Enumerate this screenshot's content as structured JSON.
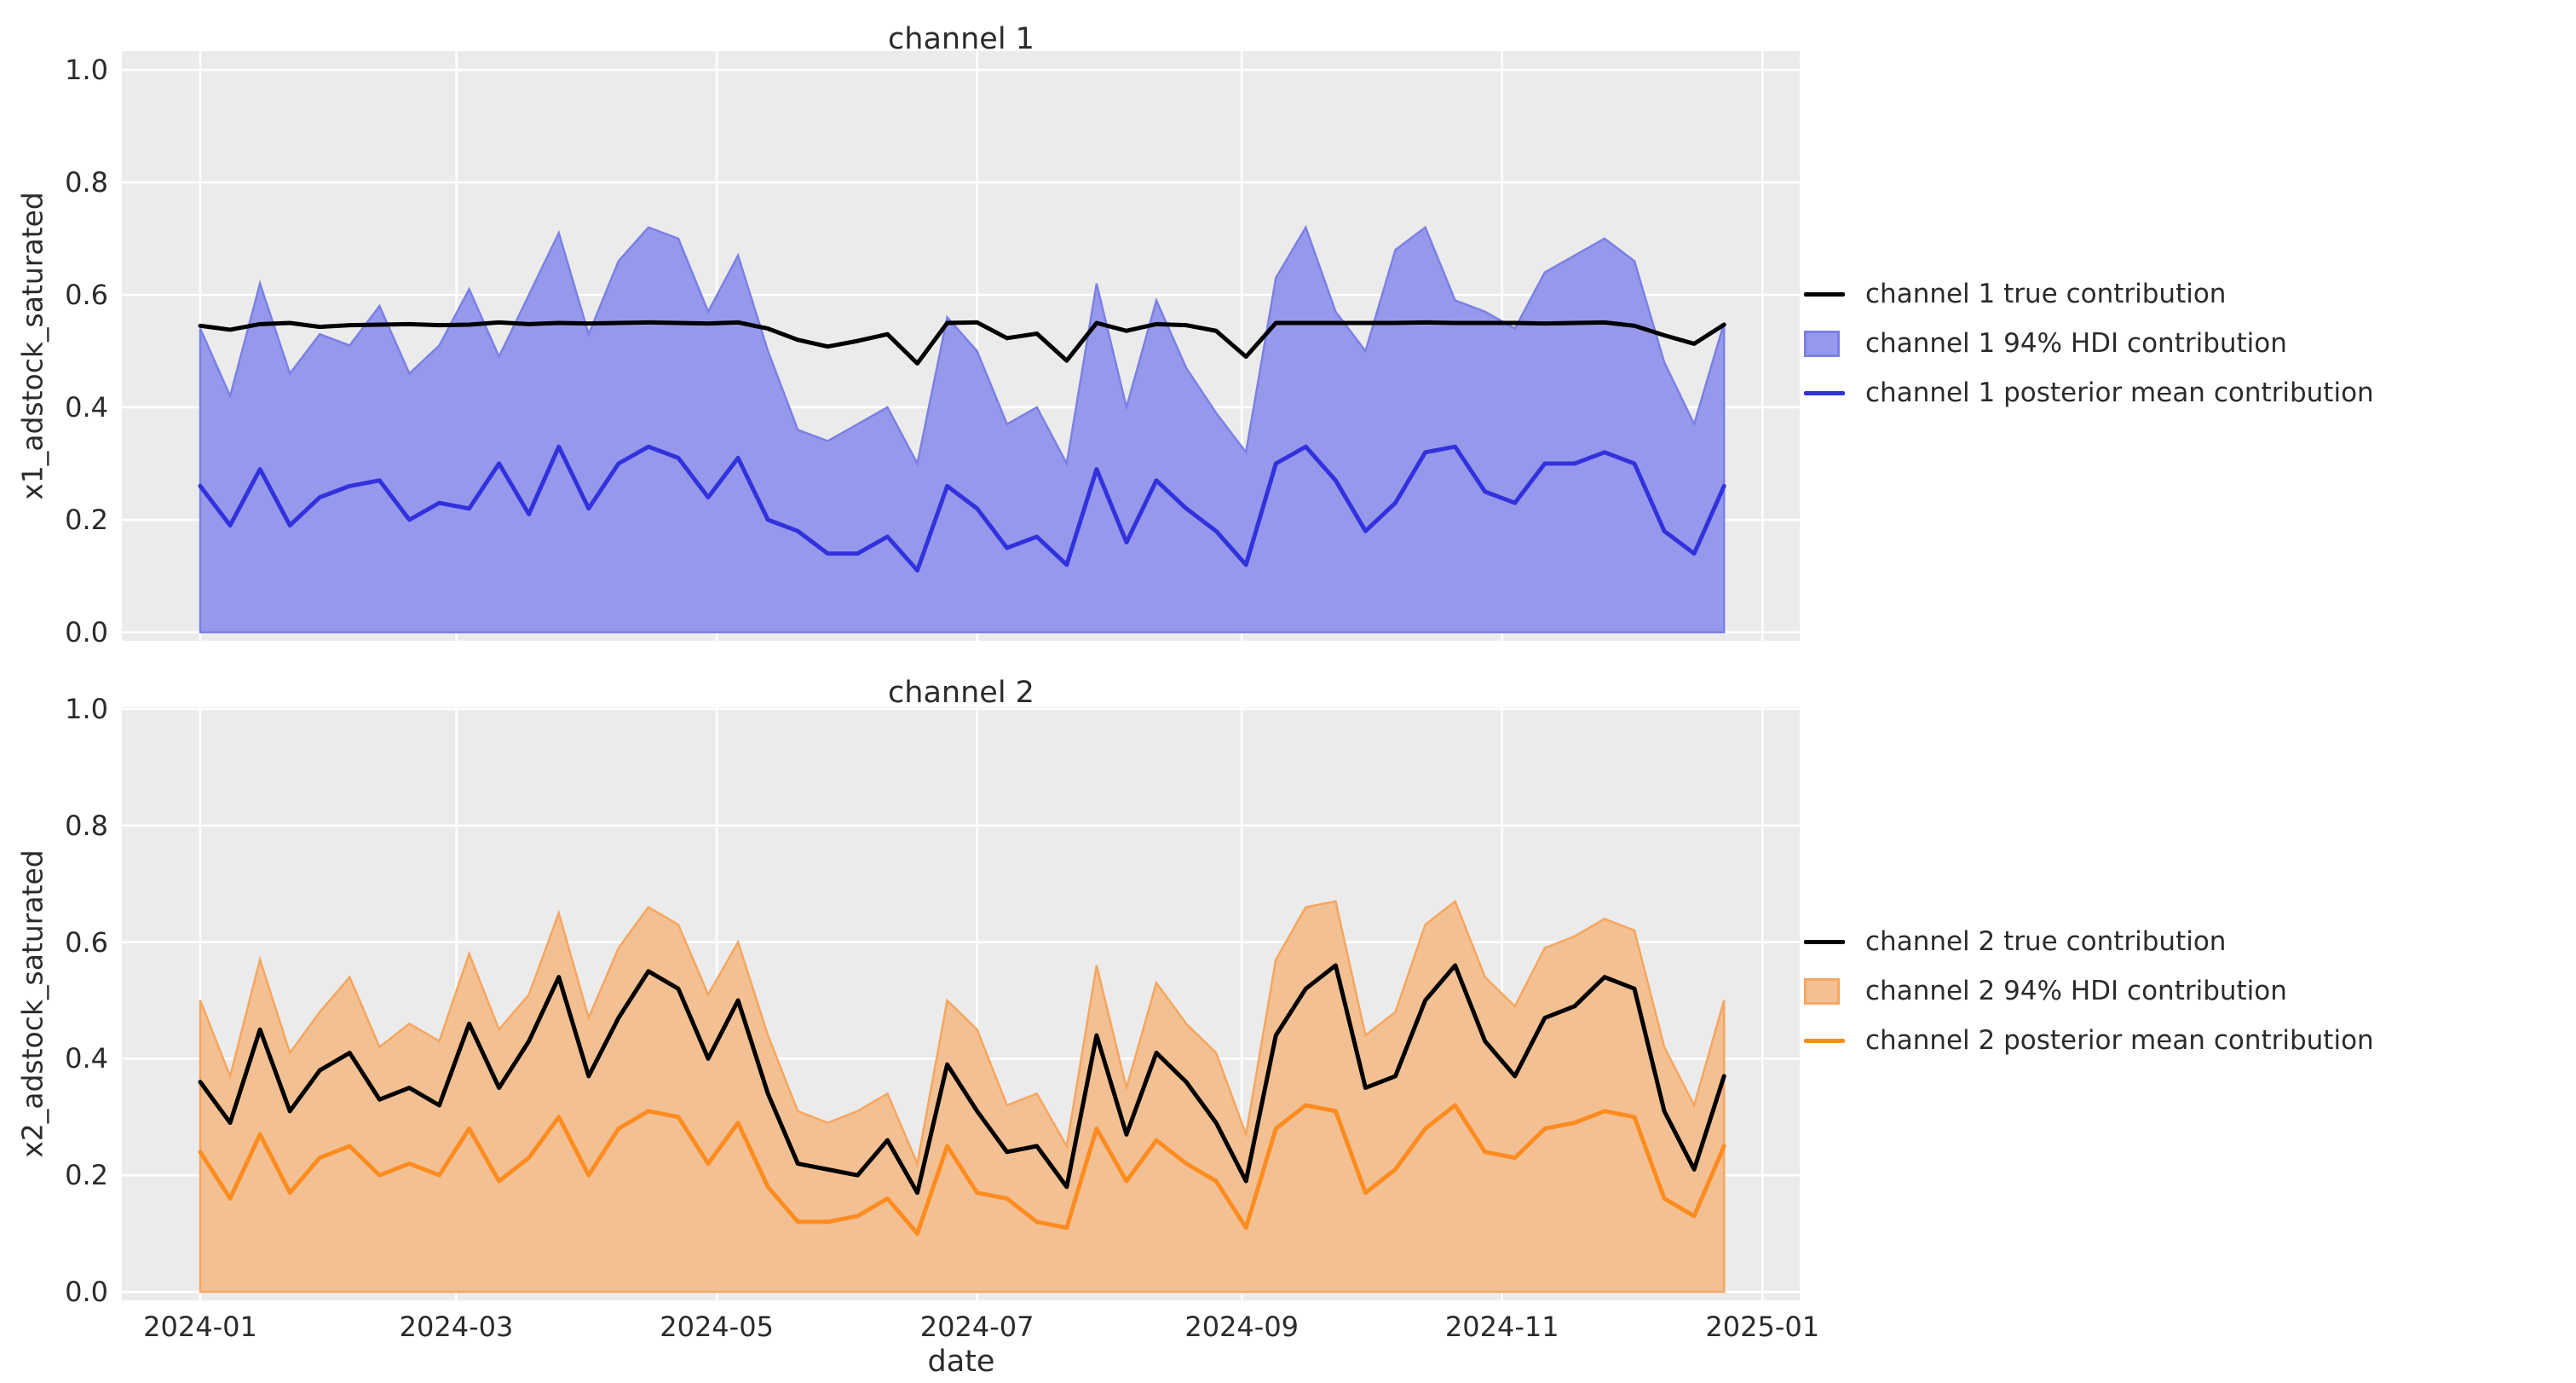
{
  "figure": {
    "background": "#ffffff",
    "axes_background": "#ebebeb",
    "grid_color": "#ffffff",
    "text_color": "#2b2b2b"
  },
  "xlabel": "date",
  "charts": [
    {
      "title": "channel 1",
      "ylabel": "x1_adstock_saturated",
      "legend": [
        {
          "swatch": "line",
          "color": "#000000",
          "label": "channel 1 true contribution"
        },
        {
          "swatch": "patch",
          "fill": "#9699eb",
          "edge": "#7b80e4",
          "label": "channel 1 94% HDI contribution"
        },
        {
          "swatch": "line",
          "color": "#3232dc",
          "label": "channel 1 posterior mean contribution"
        }
      ]
    },
    {
      "title": "channel 2",
      "ylabel": "x2_adstock_saturated",
      "legend": [
        {
          "swatch": "line",
          "color": "#000000",
          "label": "channel 2 true contribution"
        },
        {
          "swatch": "patch",
          "fill": "#f3c093",
          "edge": "#f5a65f",
          "label": "channel 2 94% HDI contribution"
        },
        {
          "swatch": "line",
          "color": "#fd8c20",
          "label": "channel 2 posterior mean contribution"
        }
      ]
    }
  ],
  "chart_data": [
    {
      "type": "line",
      "title": "channel 1",
      "xlabel": "date",
      "ylabel": "x1_adstock_saturated",
      "ylim": [
        0.0,
        1.0
      ],
      "grid": true,
      "legend_position": "right-outside",
      "y_ticks": [
        0.0,
        0.2,
        0.4,
        0.6,
        0.8,
        1.0
      ],
      "x_tick_labels": [
        "2024-01",
        "2024-03",
        "2024-05",
        "2024-07",
        "2024-09",
        "2024-11",
        "2025-01"
      ],
      "x_tick_days": [
        0,
        60,
        121,
        182,
        244,
        305,
        366
      ],
      "x_tick_labels_visible": false,
      "x": [
        "2024-01-01",
        "2024-01-08",
        "2024-01-15",
        "2024-01-22",
        "2024-01-29",
        "2024-02-05",
        "2024-02-12",
        "2024-02-19",
        "2024-02-26",
        "2024-03-04",
        "2024-03-11",
        "2024-03-18",
        "2024-03-25",
        "2024-04-01",
        "2024-04-08",
        "2024-04-15",
        "2024-04-22",
        "2024-04-29",
        "2024-05-06",
        "2024-05-13",
        "2024-05-20",
        "2024-05-27",
        "2024-06-03",
        "2024-06-10",
        "2024-06-17",
        "2024-06-24",
        "2024-07-01",
        "2024-07-08",
        "2024-07-15",
        "2024-07-22",
        "2024-07-29",
        "2024-08-05",
        "2024-08-12",
        "2024-08-19",
        "2024-08-26",
        "2024-09-02",
        "2024-09-09",
        "2024-09-16",
        "2024-09-23",
        "2024-09-30",
        "2024-10-07",
        "2024-10-14",
        "2024-10-21",
        "2024-10-28",
        "2024-11-04",
        "2024-11-11",
        "2024-11-18",
        "2024-11-25",
        "2024-12-02",
        "2024-12-09",
        "2024-12-16",
        "2024-12-23"
      ],
      "series": [
        {
          "name": "channel 1 true contribution",
          "type": "line",
          "color": "#000000",
          "values": [
            0.545,
            0.538,
            0.548,
            0.55,
            0.543,
            0.546,
            0.547,
            0.548,
            0.546,
            0.547,
            0.551,
            0.548,
            0.55,
            0.549,
            0.55,
            0.551,
            0.55,
            0.549,
            0.551,
            0.54,
            0.52,
            0.508,
            0.518,
            0.53,
            0.478,
            0.55,
            0.551,
            0.523,
            0.531,
            0.483,
            0.55,
            0.536,
            0.548,
            0.546,
            0.536,
            0.49,
            0.55,
            0.55,
            0.55,
            0.55,
            0.55,
            0.551,
            0.55,
            0.55,
            0.55,
            0.549,
            0.55,
            0.551,
            0.545,
            0.528,
            0.513,
            0.547
          ]
        },
        {
          "name": "channel 1 94% HDI contribution",
          "type": "band",
          "fill": "#9699eb",
          "edge": "#7b80e4",
          "lower": [
            0,
            0,
            0,
            0,
            0,
            0,
            0,
            0,
            0,
            0,
            0,
            0,
            0,
            0,
            0,
            0,
            0,
            0,
            0,
            0,
            0,
            0,
            0,
            0,
            0,
            0,
            0,
            0,
            0,
            0,
            0,
            0,
            0,
            0,
            0,
            0,
            0,
            0,
            0,
            0,
            0,
            0,
            0,
            0,
            0,
            0,
            0,
            0,
            0,
            0,
            0,
            0
          ],
          "upper": [
            0.54,
            0.42,
            0.62,
            0.46,
            0.53,
            0.51,
            0.58,
            0.46,
            0.51,
            0.61,
            0.49,
            0.6,
            0.71,
            0.53,
            0.66,
            0.72,
            0.7,
            0.57,
            0.67,
            0.5,
            0.36,
            0.34,
            0.37,
            0.4,
            0.3,
            0.56,
            0.5,
            0.37,
            0.4,
            0.3,
            0.62,
            0.4,
            0.59,
            0.47,
            0.39,
            0.32,
            0.63,
            0.72,
            0.57,
            0.5,
            0.68,
            0.72,
            0.59,
            0.57,
            0.54,
            0.64,
            0.67,
            0.7,
            0.66,
            0.48,
            0.37,
            0.55
          ]
        },
        {
          "name": "channel 1 posterior mean contribution",
          "type": "line",
          "color": "#3232dc",
          "values": [
            0.26,
            0.19,
            0.29,
            0.19,
            0.24,
            0.26,
            0.27,
            0.2,
            0.23,
            0.22,
            0.3,
            0.21,
            0.33,
            0.22,
            0.3,
            0.33,
            0.31,
            0.24,
            0.31,
            0.2,
            0.18,
            0.14,
            0.14,
            0.17,
            0.11,
            0.26,
            0.22,
            0.15,
            0.17,
            0.12,
            0.29,
            0.16,
            0.27,
            0.22,
            0.18,
            0.12,
            0.3,
            0.33,
            0.27,
            0.18,
            0.23,
            0.32,
            0.33,
            0.25,
            0.23,
            0.3,
            0.3,
            0.32,
            0.3,
            0.18,
            0.14,
            0.26
          ]
        }
      ]
    },
    {
      "type": "line",
      "title": "channel 2",
      "xlabel": "date",
      "ylabel": "x2_adstock_saturated",
      "ylim": [
        0.0,
        1.0
      ],
      "grid": true,
      "legend_position": "right-outside",
      "y_ticks": [
        0.0,
        0.2,
        0.4,
        0.6,
        0.8,
        1.0
      ],
      "x_tick_labels": [
        "2024-01",
        "2024-03",
        "2024-05",
        "2024-07",
        "2024-09",
        "2024-11",
        "2025-01"
      ],
      "x_tick_days": [
        0,
        60,
        121,
        182,
        244,
        305,
        366
      ],
      "x_tick_labels_visible": true,
      "x": [
        "2024-01-01",
        "2024-01-08",
        "2024-01-15",
        "2024-01-22",
        "2024-01-29",
        "2024-02-05",
        "2024-02-12",
        "2024-02-19",
        "2024-02-26",
        "2024-03-04",
        "2024-03-11",
        "2024-03-18",
        "2024-03-25",
        "2024-04-01",
        "2024-04-08",
        "2024-04-15",
        "2024-04-22",
        "2024-04-29",
        "2024-05-06",
        "2024-05-13",
        "2024-05-20",
        "2024-05-27",
        "2024-06-03",
        "2024-06-10",
        "2024-06-17",
        "2024-06-24",
        "2024-07-01",
        "2024-07-08",
        "2024-07-15",
        "2024-07-22",
        "2024-07-29",
        "2024-08-05",
        "2024-08-12",
        "2024-08-19",
        "2024-08-26",
        "2024-09-02",
        "2024-09-09",
        "2024-09-16",
        "2024-09-23",
        "2024-09-30",
        "2024-10-07",
        "2024-10-14",
        "2024-10-21",
        "2024-10-28",
        "2024-11-04",
        "2024-11-11",
        "2024-11-18",
        "2024-11-25",
        "2024-12-02",
        "2024-12-09",
        "2024-12-16",
        "2024-12-23"
      ],
      "series": [
        {
          "name": "channel 2 true contribution",
          "type": "line",
          "color": "#000000",
          "values": [
            0.36,
            0.29,
            0.45,
            0.31,
            0.38,
            0.41,
            0.33,
            0.35,
            0.32,
            0.46,
            0.35,
            0.43,
            0.54,
            0.37,
            0.47,
            0.55,
            0.52,
            0.4,
            0.5,
            0.34,
            0.22,
            0.21,
            0.2,
            0.26,
            0.17,
            0.39,
            0.31,
            0.24,
            0.25,
            0.18,
            0.44,
            0.27,
            0.41,
            0.36,
            0.29,
            0.19,
            0.44,
            0.52,
            0.56,
            0.35,
            0.37,
            0.5,
            0.56,
            0.43,
            0.37,
            0.47,
            0.49,
            0.54,
            0.52,
            0.31,
            0.21,
            0.37
          ]
        },
        {
          "name": "channel 2 94% HDI contribution",
          "type": "band",
          "fill": "#f3c093",
          "edge": "#f5a65f",
          "lower": [
            0,
            0,
            0,
            0,
            0,
            0,
            0,
            0,
            0,
            0,
            0,
            0,
            0,
            0,
            0,
            0,
            0,
            0,
            0,
            0,
            0,
            0,
            0,
            0,
            0,
            0,
            0,
            0,
            0,
            0,
            0,
            0,
            0,
            0,
            0,
            0,
            0,
            0,
            0,
            0,
            0,
            0,
            0,
            0,
            0,
            0,
            0,
            0,
            0,
            0,
            0,
            0
          ],
          "upper": [
            0.5,
            0.37,
            0.57,
            0.41,
            0.48,
            0.54,
            0.42,
            0.46,
            0.43,
            0.58,
            0.45,
            0.51,
            0.65,
            0.47,
            0.59,
            0.66,
            0.63,
            0.51,
            0.6,
            0.44,
            0.31,
            0.29,
            0.31,
            0.34,
            0.22,
            0.5,
            0.45,
            0.32,
            0.34,
            0.25,
            0.56,
            0.35,
            0.53,
            0.46,
            0.41,
            0.27,
            0.57,
            0.66,
            0.67,
            0.44,
            0.48,
            0.63,
            0.67,
            0.54,
            0.49,
            0.59,
            0.61,
            0.64,
            0.62,
            0.42,
            0.32,
            0.5
          ]
        },
        {
          "name": "channel 2 posterior mean contribution",
          "type": "line",
          "color": "#fd8c20",
          "values": [
            0.24,
            0.16,
            0.27,
            0.17,
            0.23,
            0.25,
            0.2,
            0.22,
            0.2,
            0.28,
            0.19,
            0.23,
            0.3,
            0.2,
            0.28,
            0.31,
            0.3,
            0.22,
            0.29,
            0.18,
            0.12,
            0.12,
            0.13,
            0.16,
            0.1,
            0.25,
            0.17,
            0.16,
            0.12,
            0.11,
            0.28,
            0.19,
            0.26,
            0.22,
            0.19,
            0.11,
            0.28,
            0.32,
            0.31,
            0.17,
            0.21,
            0.28,
            0.32,
            0.24,
            0.23,
            0.28,
            0.29,
            0.31,
            0.3,
            0.16,
            0.13,
            0.25
          ]
        }
      ]
    }
  ]
}
